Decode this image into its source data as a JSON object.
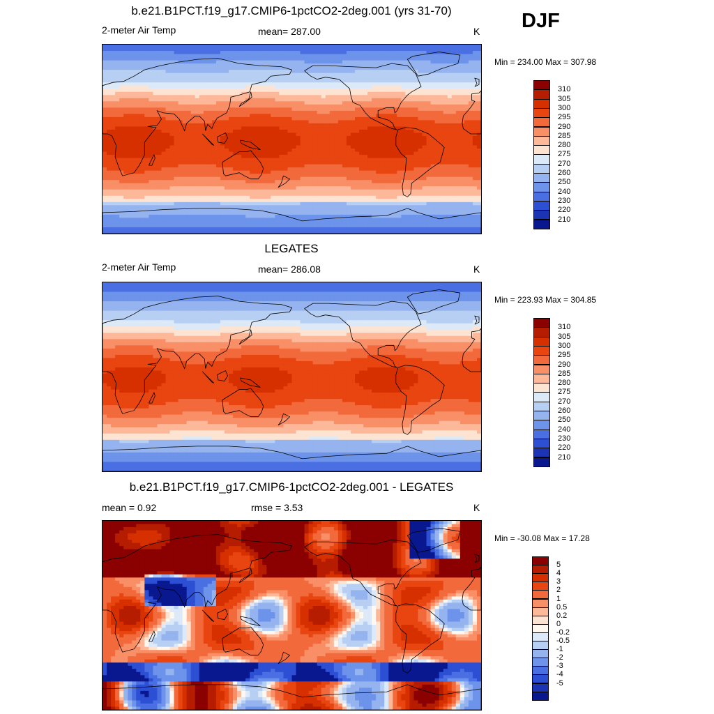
{
  "season": "DJF",
  "colors": {
    "temp_scale": [
      "#8b0000",
      "#b51c00",
      "#d73000",
      "#e84510",
      "#f26a3c",
      "#f98f66",
      "#fdb89a",
      "#fde4d2",
      "#dce9f8",
      "#b7cff2",
      "#95b3ef",
      "#6d93ea",
      "#4a6fe3",
      "#2c4fd4",
      "#1c33b4",
      "#0a1890"
    ],
    "diff_scale": [
      "#8b0000",
      "#b51c00",
      "#d73000",
      "#e84510",
      "#f26a3c",
      "#f98f66",
      "#fdb89a",
      "#fde4d2",
      "#fff8f0",
      "#dce9f8",
      "#b7cff2",
      "#95b3ef",
      "#6d93ea",
      "#4a6fe3",
      "#2c4fd4",
      "#1c33b4",
      "#0a1890"
    ],
    "coastline": "#000000"
  },
  "panels": [
    {
      "title": "b.e21.B1PCT.f19_g17.CMIP6-1pctCO2-2deg.001 (yrs 31-70)",
      "left": "2-meter Air Temp",
      "center": "mean= 287.00",
      "units": "K",
      "minmax": "Min = 234.00 Max = 307.98",
      "kind": "temp"
    },
    {
      "title": "LEGATES",
      "left": "2-meter Air Temp",
      "center": "mean= 286.08",
      "units": "K",
      "minmax": "Min = 223.93 Max = 304.85",
      "kind": "temp"
    },
    {
      "title": "b.e21.B1PCT.f19_g17.CMIP6-1pctCO2-2deg.001 - LEGATES",
      "left": "mean =   0.92",
      "center": "rmse =   3.53",
      "units": "K",
      "minmax": "Min = -30.08 Max =  17.28",
      "kind": "diff"
    }
  ],
  "temp_labels": [
    "310",
    "305",
    "300",
    "295",
    "290",
    "285",
    "280",
    "275",
    "270",
    "260",
    "250",
    "240",
    "230",
    "220",
    "210"
  ],
  "diff_labels": [
    "5",
    "4",
    "3",
    "2",
    "1",
    "0.5",
    "0.2",
    "0",
    "-0.2",
    "-0.5",
    "-1",
    "-2",
    "-3",
    "-4",
    "-5"
  ]
}
